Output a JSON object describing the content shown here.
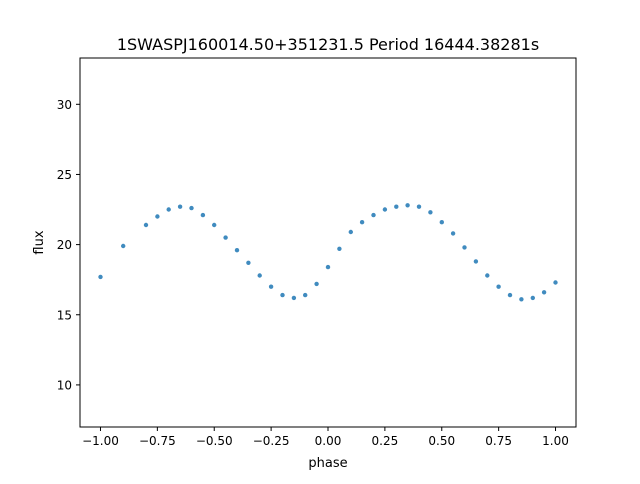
{
  "chart_data": {
    "type": "scatter",
    "title": "1SWASPJ160014.50+351231.5 Period 16444.38281s",
    "xlabel": "phase",
    "ylabel": "flux",
    "xlim": [
      -1.09,
      1.09
    ],
    "ylim": [
      7.0,
      33.3
    ],
    "x_ticks": [
      -1.0,
      -0.75,
      -0.5,
      -0.25,
      0.0,
      0.25,
      0.5,
      0.75,
      1.0
    ],
    "x_tick_labels": [
      "−1.00",
      "−0.75",
      "−0.50",
      "−0.25",
      "0.00",
      "0.25",
      "0.50",
      "0.75",
      "1.00"
    ],
    "y_ticks": [
      10,
      15,
      20,
      25,
      30
    ],
    "y_tick_labels": [
      "10",
      "15",
      "20",
      "25",
      "30"
    ],
    "grid": false,
    "legend": "none",
    "marker_color": "#1f77b4",
    "series": [
      {
        "x": [
          -1.0,
          -0.9,
          -0.8,
          -0.75,
          -0.7,
          -0.65,
          -0.6,
          -0.55,
          -0.5,
          -0.45,
          -0.4,
          -0.35,
          -0.3,
          -0.25,
          -0.2,
          -0.15,
          -0.1,
          -0.05,
          0.0,
          0.05,
          0.1,
          0.15,
          0.2,
          0.25,
          0.3,
          0.35,
          0.4,
          0.45,
          0.5,
          0.55,
          0.6,
          0.65,
          0.7,
          0.75,
          0.8,
          0.85,
          0.9,
          0.95,
          1.0
        ],
        "y": [
          17.7,
          19.9,
          21.4,
          22.0,
          22.5,
          22.7,
          22.6,
          22.1,
          21.4,
          20.5,
          19.6,
          18.7,
          17.8,
          17.0,
          16.4,
          16.2,
          16.4,
          17.2,
          18.4,
          19.7,
          20.9,
          21.6,
          22.1,
          22.5,
          22.7,
          22.8,
          22.7,
          22.3,
          21.6,
          20.8,
          19.8,
          18.8,
          17.8,
          17.0,
          16.4,
          16.1,
          16.2,
          16.6,
          17.3
        ]
      }
    ]
  }
}
